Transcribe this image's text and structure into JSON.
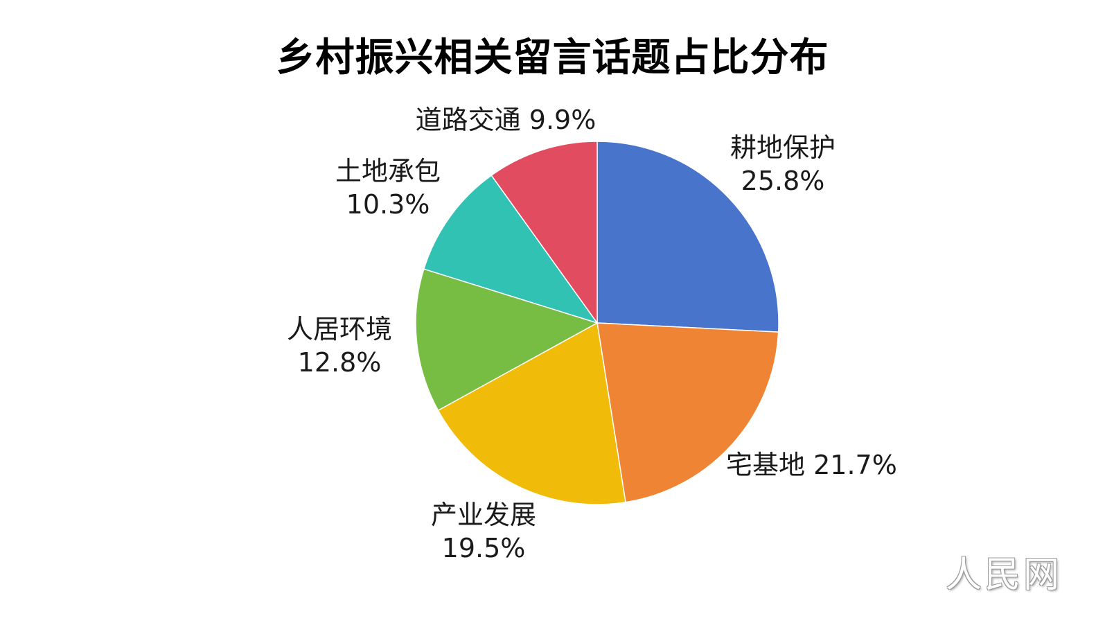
{
  "chart_data": {
    "type": "pie",
    "title": "乡村振兴相关留言话题占比分布",
    "slices": [
      {
        "label": "耕地保护",
        "value": 25.8,
        "value_label": "25.8%",
        "color": "#4874CB"
      },
      {
        "label": "宅基地",
        "value": 21.7,
        "value_label": "21.7%",
        "color": "#EE8434"
      },
      {
        "label": "产业发展",
        "value": 19.5,
        "value_label": "19.5%",
        "color": "#F1BB0A"
      },
      {
        "label": "人居环境",
        "value": 12.8,
        "value_label": "12.8%",
        "color": "#78BD43"
      },
      {
        "label": "土地承包",
        "value": 10.3,
        "value_label": "10.3%",
        "color": "#31C2B3"
      },
      {
        "label": "道路交通",
        "value": 9.9,
        "value_label": "9.9%",
        "color": "#E14C60"
      }
    ],
    "start_angle": "12 o'clock",
    "direction": "clockwise",
    "legend": "none"
  },
  "watermark": "人民网"
}
